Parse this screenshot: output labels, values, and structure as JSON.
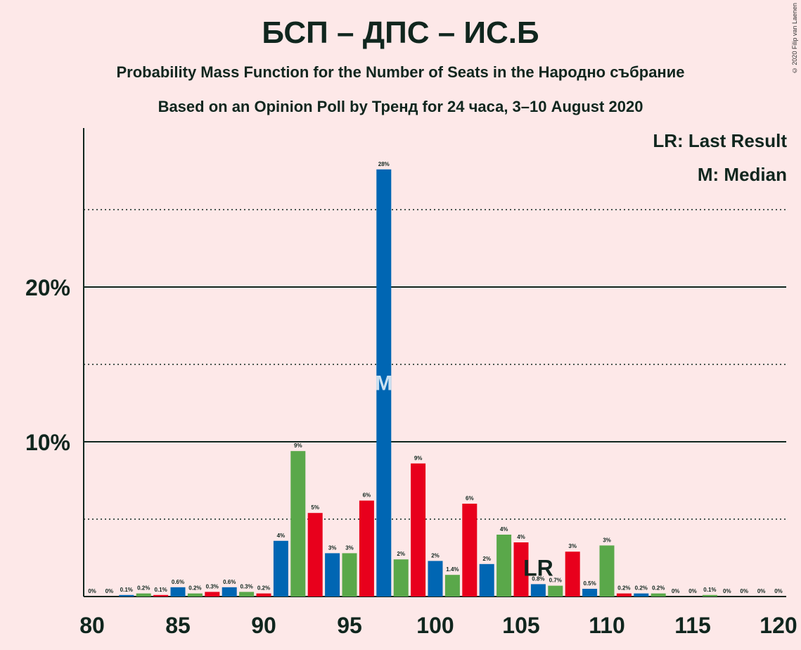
{
  "title": "БСП – ДПС – ИС.Б",
  "subtitle1": "Probability Mass Function for the Number of Seats in the Народно събрание",
  "subtitle2": "Based on an Opinion Poll by Тренд for 24 часа, 3–10 August 2020",
  "copyright": "© 2020 Filip van Laenen",
  "legend": {
    "lr": "LR: Last Result",
    "median": "M: Median"
  },
  "colors": {
    "blue": "#0066b3",
    "green": "#5aa84a",
    "red": "#e8001c",
    "background": "#fde8e8"
  },
  "chart_data": {
    "type": "bar",
    "x": [
      80,
      81,
      82,
      83,
      84,
      85,
      86,
      87,
      88,
      89,
      90,
      91,
      92,
      93,
      94,
      95,
      96,
      97,
      98,
      99,
      100,
      101,
      102,
      103,
      104,
      105,
      106,
      107,
      108,
      109,
      110,
      111,
      112,
      113,
      114,
      115,
      116,
      117,
      118,
      119,
      120
    ],
    "values": [
      0,
      0,
      0.1,
      0.2,
      0.1,
      0.6,
      0.2,
      0.3,
      0.6,
      0.3,
      0.2,
      3.6,
      9.4,
      5.4,
      2.8,
      2.8,
      6.2,
      27.6,
      2.4,
      8.6,
      2.3,
      1.4,
      6.0,
      2.1,
      4.0,
      3.5,
      0.8,
      0.7,
      2.9,
      0.5,
      3.3,
      0.2,
      0.2,
      0.2,
      0,
      0,
      0.1,
      0,
      0,
      0,
      0
    ],
    "labels": [
      "0%",
      "0%",
      "0.1%",
      "0.2%",
      "0.1%",
      "0.6%",
      "0.2%",
      "0.3%",
      "0.6%",
      "0.3%",
      "0.2%",
      "4%",
      "9%",
      "5%",
      "3%",
      "3%",
      "6%",
      "28%",
      "2%",
      "9%",
      "2%",
      "1.4%",
      "6%",
      "2%",
      "4%",
      "4%",
      "0.8%",
      "0.7%",
      "3%",
      "0.5%",
      "3%",
      "0.2%",
      "0.2%",
      "0.2%",
      "0%",
      "0%",
      "0.1%",
      "0%",
      "0%",
      "0%",
      "0%"
    ],
    "x_ticks": [
      "80",
      "85",
      "90",
      "95",
      "100",
      "105",
      "110",
      "115",
      "120"
    ],
    "y_ticks": [
      "10%",
      "20%"
    ],
    "ylim": [
      0,
      30
    ],
    "median_seat": 97,
    "median_marker": "M",
    "last_result_seat": 106,
    "last_result_marker": "LR"
  }
}
